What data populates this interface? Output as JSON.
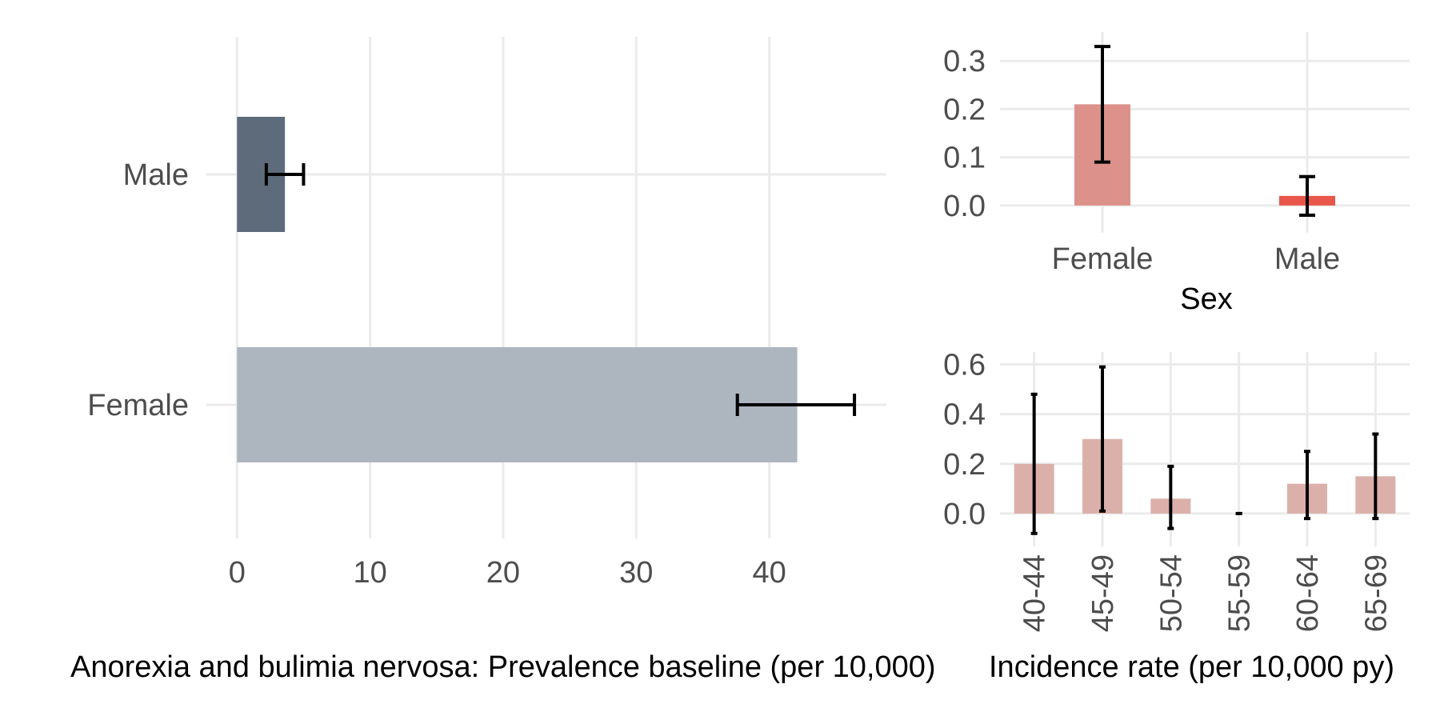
{
  "chart_data": [
    {
      "type": "bar",
      "orientation": "horizontal",
      "categories": [
        "Male",
        "Female"
      ],
      "values": [
        3.6,
        42.1
      ],
      "error_low": [
        2.2,
        37.6
      ],
      "error_high": [
        5.0,
        46.4
      ],
      "bar_colors": [
        "#5d6b7b",
        "#adb5bf"
      ],
      "xlabel": "Anorexia and bulimia nervosa: Prevalence baseline (per 10,000)",
      "ylabel": "",
      "xlim": [
        -2.3,
        48.8
      ],
      "xticks": [
        0,
        10,
        20,
        30,
        40
      ],
      "grid": true
    },
    {
      "type": "bar",
      "categories": [
        "Female",
        "Male"
      ],
      "values": [
        0.21,
        0.02
      ],
      "error_low": [
        0.09,
        -0.02
      ],
      "error_high": [
        0.33,
        0.06
      ],
      "bar_colors": [
        "#dc918a",
        "#e8574a"
      ],
      "xlabel": "Sex",
      "ylabel": "",
      "ylim": [
        -0.04,
        0.36
      ],
      "yticks": [
        "0.0",
        "0.1",
        "0.2",
        "0.3"
      ],
      "grid": true
    },
    {
      "type": "bar",
      "categories": [
        "40-44",
        "45-49",
        "50-54",
        "55-59",
        "60-64",
        "65-69"
      ],
      "values": [
        0.2,
        0.3,
        0.06,
        0.0,
        0.12,
        0.15
      ],
      "error_low": [
        -0.08,
        0.01,
        -0.06,
        0.0,
        -0.02,
        -0.02
      ],
      "error_high": [
        0.48,
        0.59,
        0.19,
        0.0,
        0.25,
        0.32
      ],
      "bar_colors": [
        "#dcb0aa"
      ],
      "xlabel": "Incidence rate (per 10,000 py)",
      "ylabel": "",
      "ylim": [
        -0.1,
        0.65
      ],
      "yticks": [
        "0.0",
        "0.2",
        "0.4",
        "0.6"
      ],
      "grid": true
    }
  ]
}
